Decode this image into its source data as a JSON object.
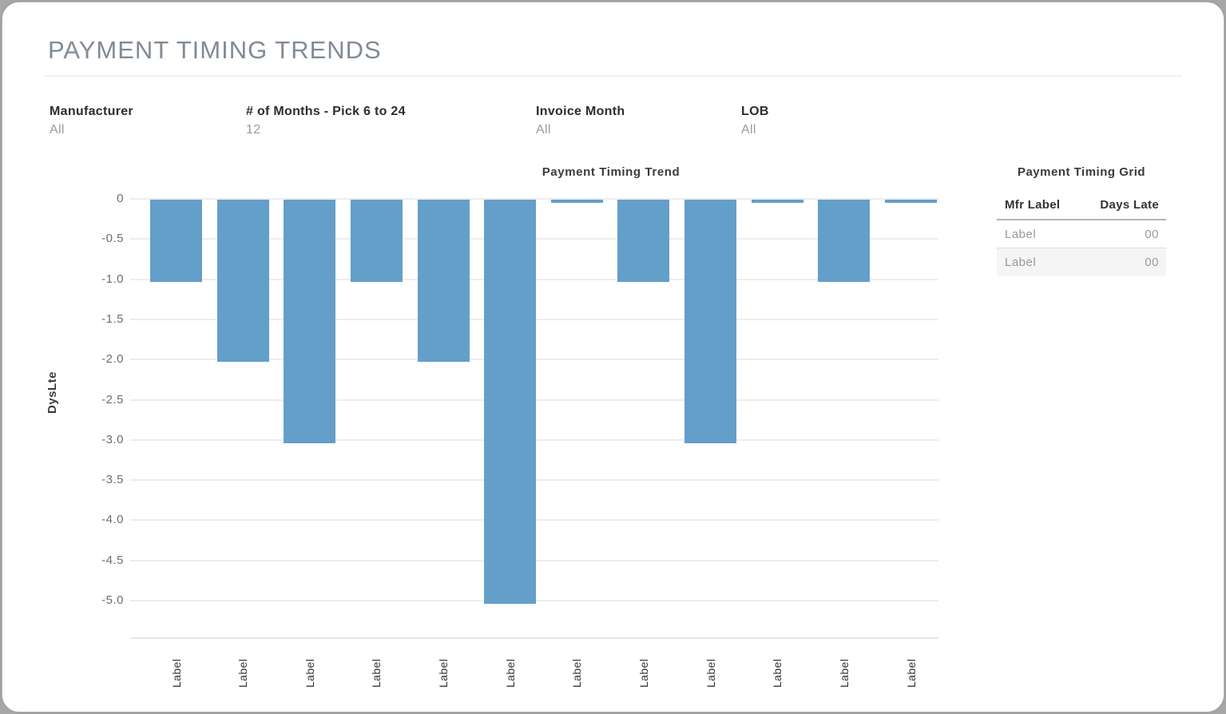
{
  "page": {
    "title": "PAYMENT TIMING TRENDS"
  },
  "filters": [
    {
      "label": "Manufacturer",
      "value": "All"
    },
    {
      "label": "# of Months - Pick 6 to 24",
      "value": "12"
    },
    {
      "label": "Invoice Month",
      "value": "All"
    },
    {
      "label": "LOB",
      "value": "All"
    }
  ],
  "chart_data": {
    "type": "bar",
    "title": "Payment Timing Trend",
    "xlabel": "",
    "ylabel": "DysLte",
    "categories": [
      "Label",
      "Label",
      "Label",
      "Label",
      "Label",
      "Label",
      "Label",
      "Label",
      "Label",
      "Label",
      "Label",
      "Label"
    ],
    "values": [
      -1.02,
      -2.02,
      -3.03,
      -1.02,
      -2.02,
      -5.03,
      -0.04,
      -1.02,
      -3.03,
      -0.04,
      -1.02,
      -0.04
    ],
    "yticks": [
      0,
      -0.5,
      -1,
      -1.5,
      -2,
      -2.5,
      -3,
      -3.5,
      -4,
      -4.5,
      -5
    ],
    "ytick_labels": [
      "0",
      "-0.5",
      "-1.0",
      "-1.5",
      "-2.0",
      "-2.5",
      "-3.0",
      "-3.5",
      "-4.0",
      "-4.5",
      "-5.0"
    ],
    "ylim": [
      0.1,
      -5.5
    ],
    "grid": true,
    "legend": false,
    "bar_color": "#639fc9"
  },
  "grid_panel": {
    "title": "Payment Timing Grid",
    "columns": [
      "Mfr Label",
      "Days Late"
    ],
    "rows": [
      {
        "mfr": "Label",
        "days_late": "00"
      },
      {
        "mfr": "Label",
        "days_late": "00"
      }
    ]
  },
  "colors": {
    "page_title": "#818b97",
    "text_dark": "#2d2d2d",
    "text_muted": "#9b9b9b",
    "bar": "#639fc9",
    "gridline": "#ededed",
    "row_alt_bg": "#f5f5f5"
  }
}
